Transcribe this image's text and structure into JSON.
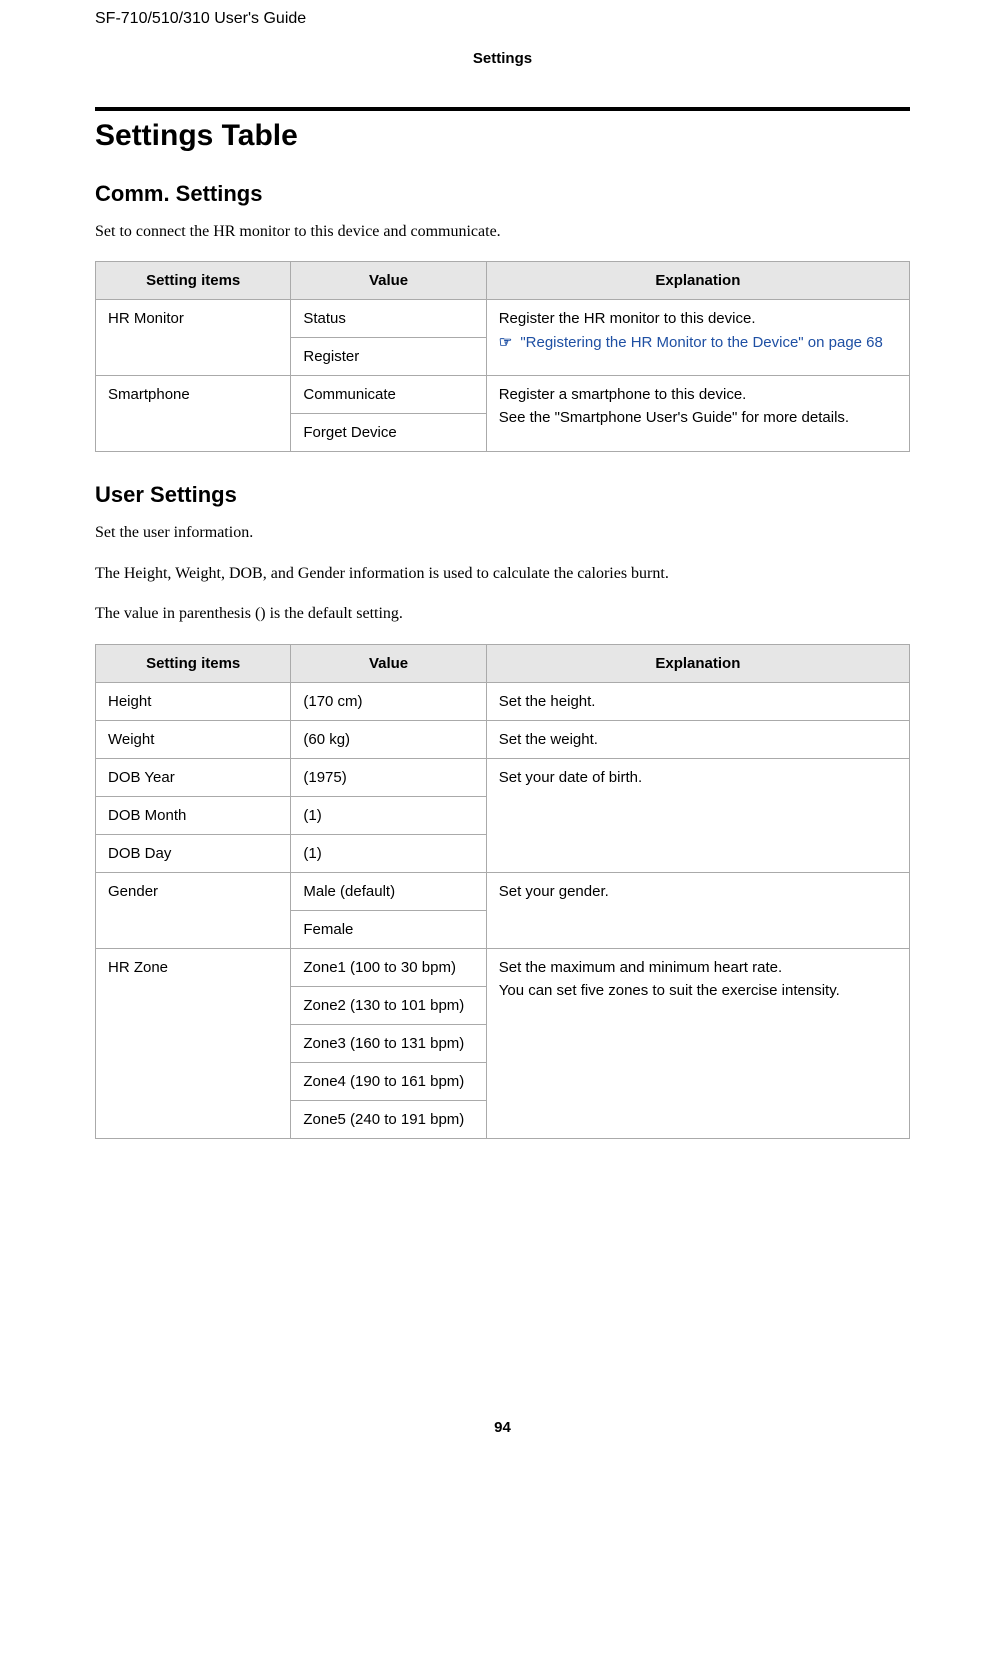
{
  "doc_header": "SF-710/510/310     User's Guide",
  "chapter": "Settings",
  "section_title": "Settings Table",
  "comm": {
    "heading": "Comm. Settings",
    "intro": "Set to connect the HR monitor to this device and communicate.",
    "columns": {
      "item": "Setting items",
      "value": "Value",
      "expl": "Explanation"
    },
    "rows": {
      "hr_monitor": {
        "item": "HR Monitor",
        "values": [
          "Status",
          "Register"
        ],
        "expl_line1": "Register the HR monitor to this device.",
        "xref_text": "\"Registering the HR Monitor to the Device\" on page 68"
      },
      "smartphone": {
        "item": "Smartphone",
        "values": [
          "Communicate",
          "Forget Device"
        ],
        "expl_line1": "Register a smartphone to this device.",
        "expl_line2": "See the \"Smartphone User's Guide\" for more details."
      }
    }
  },
  "user": {
    "heading": "User Settings",
    "intro1": "Set the user information.",
    "intro2": "The Height, Weight, DOB, and Gender information is used to calculate the calories burnt.",
    "intro3": "The value in parenthesis () is the default setting.",
    "columns": {
      "item": "Setting items",
      "value": "Value",
      "expl": "Explanation"
    },
    "rows": {
      "height": {
        "item": "Height",
        "value": "(170 cm)",
        "expl": "Set the height."
      },
      "weight": {
        "item": "Weight",
        "value": "(60 kg)",
        "expl": "Set the weight."
      },
      "dob_year": {
        "item": "DOB Year",
        "value": "(1975)"
      },
      "dob_month": {
        "item": "DOB Month",
        "value": "(1)"
      },
      "dob_day": {
        "item": "DOB Day",
        "value": "(1)"
      },
      "dob_expl": "Set your date of birth.",
      "gender": {
        "item": "Gender",
        "values": [
          "Male (default)",
          "Female"
        ],
        "expl": "Set your gender."
      },
      "hrzone": {
        "item": "HR Zone",
        "values": [
          "Zone1 (100 to 30 bpm)",
          "Zone2 (130 to 101 bpm)",
          "Zone3 (160 to 131 bpm)",
          "Zone4 (190 to 161 bpm)",
          "Zone5 (240 to 191 bpm)"
        ],
        "expl_line1": "Set the maximum and minimum heart rate.",
        "expl_line2": "You can set five zones to suit the exercise intensity."
      }
    }
  },
  "page_number": "94"
}
